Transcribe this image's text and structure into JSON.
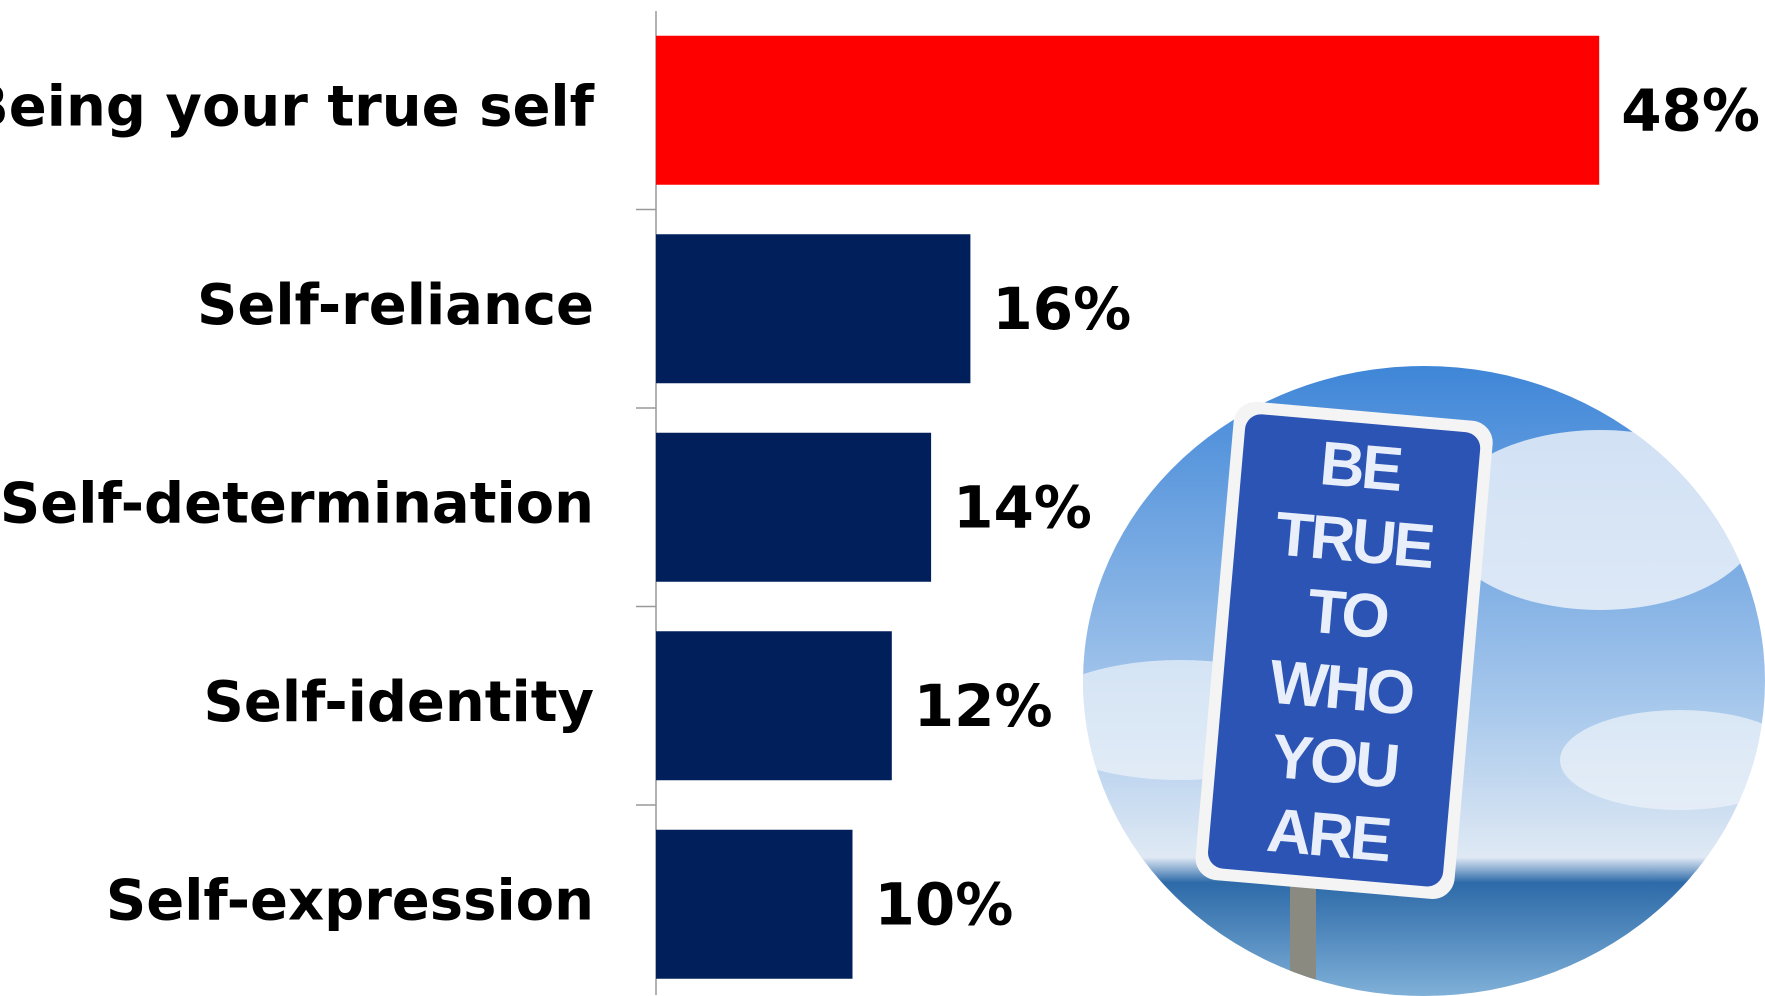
{
  "chart_data": {
    "type": "bar",
    "orientation": "horizontal",
    "categories": [
      "Being your true self",
      "Self-reliance",
      "Self-determination",
      "Self-identity",
      "Self-expression"
    ],
    "values": [
      48,
      16,
      14,
      12,
      10
    ],
    "value_labels": [
      "48%",
      "16%",
      "14%",
      "12%",
      "10%"
    ],
    "colors": [
      "#ff0000",
      "#001f5b",
      "#001f5b",
      "#001f5b",
      "#001f5b"
    ],
    "image_text": [
      "BE",
      "TRUE",
      "TO",
      "WHO",
      "YOU",
      "ARE"
    ]
  }
}
